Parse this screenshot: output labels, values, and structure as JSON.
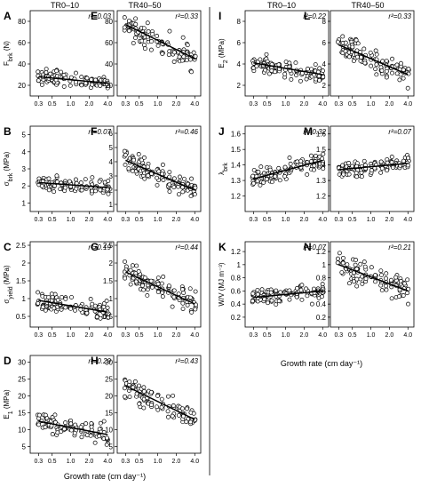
{
  "column_headers": {
    "left_1": "TR0–10",
    "left_2": "TR40–50",
    "right_1": "TR0–10",
    "right_2": "TR40–50"
  },
  "xlabel": "Growth rate (cm day⁻¹)",
  "x_tick_labels": [
    "0.3",
    "0.5",
    "1.0",
    "2.0",
    "4.0"
  ],
  "chart_data": [
    {
      "id": "A",
      "type": "scatter",
      "ylabel": "F_brk (N)",
      "yticks": [
        20,
        40,
        60,
        80
      ],
      "ylim": [
        10,
        90
      ],
      "r2": "r²=0.03",
      "x_scale": "log",
      "trend": {
        "x": [
          0.3,
          4.0
        ],
        "y": [
          28,
          22
        ]
      },
      "cloud": {
        "mean_start": 28,
        "mean_end": 22,
        "spread": 7
      }
    },
    {
      "id": "B",
      "type": "scatter",
      "ylabel": "σ_brk (MPa)",
      "yticks": [
        1,
        2,
        3,
        4,
        5
      ],
      "ylim": [
        0.5,
        5.5
      ],
      "r2": "r²=0.07",
      "x_scale": "log",
      "trend": {
        "x": [
          0.3,
          4.0
        ],
        "y": [
          2.2,
          1.9
        ]
      },
      "cloud": {
        "mean_start": 2.2,
        "mean_end": 1.9,
        "spread": 0.5
      }
    },
    {
      "id": "C",
      "type": "scatter",
      "ylabel": "σ_yield (MPa)",
      "yticks": [
        0.5,
        1.0,
        1.5,
        2.0,
        2.5
      ],
      "ylim": [
        0.2,
        2.6
      ],
      "r2": "r²=0.19",
      "x_scale": "log",
      "trend": {
        "x": [
          0.3,
          4.0
        ],
        "y": [
          0.95,
          0.62
        ]
      },
      "cloud": {
        "mean_start": 0.95,
        "mean_end": 0.62,
        "spread": 0.3
      }
    },
    {
      "id": "D",
      "type": "scatter",
      "ylabel": "E_1 (MPa)",
      "yticks": [
        5,
        10,
        15,
        20,
        25,
        30
      ],
      "ylim": [
        3,
        32
      ],
      "r2": "r²=0.29",
      "x_scale": "log",
      "trend": {
        "x": [
          0.3,
          4.0
        ],
        "y": [
          12.5,
          8.5
        ]
      },
      "cloud": {
        "mean_start": 12.5,
        "mean_end": 8.5,
        "spread": 3
      }
    },
    {
      "id": "E",
      "type": "scatter",
      "ylabel": "",
      "yticks": [
        20,
        40,
        60,
        80
      ],
      "ylim": [
        10,
        90
      ],
      "r2": "r²=0.33",
      "x_scale": "log",
      "trend": {
        "x": [
          0.3,
          4.0
        ],
        "y": [
          77,
          45
        ]
      },
      "cloud": {
        "mean_start": 77,
        "mean_end": 45,
        "spread": 14
      }
    },
    {
      "id": "F",
      "type": "scatter",
      "ylabel": "",
      "yticks": [
        1,
        2,
        3,
        4,
        5,
        6
      ],
      "ylim": [
        0.5,
        6.5
      ],
      "r2": "r²=0.46",
      "x_scale": "log",
      "trend": {
        "x": [
          0.3,
          4.0
        ],
        "y": [
          4.1,
          2.0
        ]
      },
      "cloud": {
        "mean_start": 4.1,
        "mean_end": 2.0,
        "spread": 0.8
      }
    },
    {
      "id": "G",
      "type": "scatter",
      "ylabel": "",
      "yticks": [
        0.5,
        1.0,
        1.5,
        2.0,
        2.5
      ],
      "ylim": [
        0.2,
        2.6
      ],
      "r2": "r²=0.44",
      "x_scale": "log",
      "trend": {
        "x": [
          0.3,
          4.0
        ],
        "y": [
          1.75,
          0.85
        ]
      },
      "cloud": {
        "mean_start": 1.75,
        "mean_end": 0.85,
        "spread": 0.35
      }
    },
    {
      "id": "H",
      "type": "scatter",
      "ylabel": "",
      "yticks": [
        5,
        10,
        15,
        20,
        25,
        30
      ],
      "ylim": [
        3,
        32
      ],
      "r2": "r²=0.43",
      "x_scale": "log",
      "trend": {
        "x": [
          0.3,
          4.0
        ],
        "y": [
          23,
          13
        ]
      },
      "cloud": {
        "mean_start": 23,
        "mean_end": 13,
        "spread": 4
      }
    },
    {
      "id": "I",
      "type": "scatter",
      "ylabel": "E_2 (MPa)",
      "yticks": [
        2,
        4,
        6,
        8
      ],
      "ylim": [
        1,
        9
      ],
      "r2": "r²=0.22",
      "x_scale": "log",
      "trend": {
        "x": [
          0.3,
          4.0
        ],
        "y": [
          4.1,
          3.0
        ]
      },
      "cloud": {
        "mean_start": 4.1,
        "mean_end": 3.0,
        "spread": 0.9
      }
    },
    {
      "id": "J",
      "type": "scatter",
      "ylabel": "λ_brk",
      "yticks": [
        1.2,
        1.3,
        1.4,
        1.5,
        1.6
      ],
      "ylim": [
        1.1,
        1.65
      ],
      "r2": "r²=0.32",
      "x_scale": "log",
      "trend": {
        "x": [
          0.3,
          4.0
        ],
        "y": [
          1.31,
          1.43
        ]
      },
      "cloud": {
        "mean_start": 1.31,
        "mean_end": 1.43,
        "spread": 0.06
      }
    },
    {
      "id": "K",
      "type": "scatter",
      "ylabel": "W/V (MJ m⁻³)",
      "yticks": [
        0.2,
        0.4,
        0.6,
        0.8,
        1.0,
        1.2
      ],
      "ylim": [
        0.05,
        1.35
      ],
      "r2": "r²=0.07",
      "x_scale": "log",
      "trend": {
        "x": [
          0.3,
          4.0
        ],
        "y": [
          0.5,
          0.6
        ]
      },
      "cloud": {
        "mean_start": 0.5,
        "mean_end": 0.6,
        "spread": 0.15
      }
    },
    {
      "id": "L",
      "type": "scatter",
      "ylabel": "",
      "yticks": [
        2,
        4,
        6,
        8
      ],
      "ylim": [
        1,
        9
      ],
      "r2": "r²=0.33",
      "x_scale": "log",
      "trend": {
        "x": [
          0.3,
          4.0
        ],
        "y": [
          5.8,
          3.0
        ]
      },
      "cloud": {
        "mean_start": 5.8,
        "mean_end": 3.0,
        "spread": 1.2
      }
    },
    {
      "id": "M",
      "type": "scatter",
      "ylabel": "",
      "yticks": [
        1.2,
        1.3,
        1.4,
        1.5,
        1.6
      ],
      "ylim": [
        1.1,
        1.65
      ],
      "r2": "r²=0.07",
      "x_scale": "log",
      "trend": {
        "x": [
          0.3,
          4.0
        ],
        "y": [
          1.37,
          1.41
        ]
      },
      "cloud": {
        "mean_start": 1.37,
        "mean_end": 1.41,
        "spread": 0.06
      }
    },
    {
      "id": "N",
      "type": "scatter",
      "ylabel": "",
      "yticks": [
        0.2,
        0.4,
        0.6,
        0.8,
        1.0,
        1.2
      ],
      "ylim": [
        0.05,
        1.35
      ],
      "r2": "r²=0.21",
      "x_scale": "log",
      "trend": {
        "x": [
          0.3,
          4.0
        ],
        "y": [
          1.0,
          0.6
        ]
      },
      "cloud": {
        "mean_start": 1.0,
        "mean_end": 0.6,
        "spread": 0.2
      }
    }
  ]
}
